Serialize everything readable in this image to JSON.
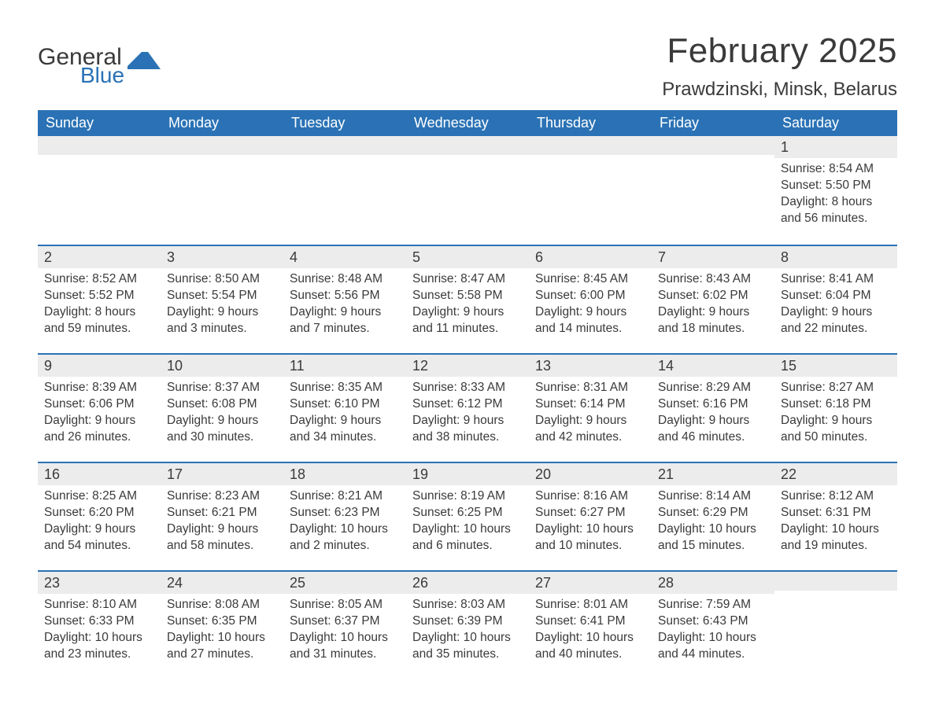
{
  "logo": {
    "part1": "General",
    "part2": "Blue",
    "flag_color": "#2a72b5",
    "text_color": "#3a3a3a"
  },
  "title": "February 2025",
  "location": "Prawdzinski, Minsk, Belarus",
  "colors": {
    "header_bg": "#2a72b5",
    "header_text": "#ffffff",
    "row_divider": "#2a72b5",
    "daynum_bg": "#ececec",
    "body_text": "#3a3a3a",
    "page_bg": "#ffffff"
  },
  "day_names": [
    "Sunday",
    "Monday",
    "Tuesday",
    "Wednesday",
    "Thursday",
    "Friday",
    "Saturday"
  ],
  "weeks": [
    [
      {
        "day": "",
        "sunrise": "",
        "sunset": "",
        "daylight1": "",
        "daylight2": ""
      },
      {
        "day": "",
        "sunrise": "",
        "sunset": "",
        "daylight1": "",
        "daylight2": ""
      },
      {
        "day": "",
        "sunrise": "",
        "sunset": "",
        "daylight1": "",
        "daylight2": ""
      },
      {
        "day": "",
        "sunrise": "",
        "sunset": "",
        "daylight1": "",
        "daylight2": ""
      },
      {
        "day": "",
        "sunrise": "",
        "sunset": "",
        "daylight1": "",
        "daylight2": ""
      },
      {
        "day": "",
        "sunrise": "",
        "sunset": "",
        "daylight1": "",
        "daylight2": ""
      },
      {
        "day": "1",
        "sunrise": "Sunrise: 8:54 AM",
        "sunset": "Sunset: 5:50 PM",
        "daylight1": "Daylight: 8 hours",
        "daylight2": "and 56 minutes."
      }
    ],
    [
      {
        "day": "2",
        "sunrise": "Sunrise: 8:52 AM",
        "sunset": "Sunset: 5:52 PM",
        "daylight1": "Daylight: 8 hours",
        "daylight2": "and 59 minutes."
      },
      {
        "day": "3",
        "sunrise": "Sunrise: 8:50 AM",
        "sunset": "Sunset: 5:54 PM",
        "daylight1": "Daylight: 9 hours",
        "daylight2": "and 3 minutes."
      },
      {
        "day": "4",
        "sunrise": "Sunrise: 8:48 AM",
        "sunset": "Sunset: 5:56 PM",
        "daylight1": "Daylight: 9 hours",
        "daylight2": "and 7 minutes."
      },
      {
        "day": "5",
        "sunrise": "Sunrise: 8:47 AM",
        "sunset": "Sunset: 5:58 PM",
        "daylight1": "Daylight: 9 hours",
        "daylight2": "and 11 minutes."
      },
      {
        "day": "6",
        "sunrise": "Sunrise: 8:45 AM",
        "sunset": "Sunset: 6:00 PM",
        "daylight1": "Daylight: 9 hours",
        "daylight2": "and 14 minutes."
      },
      {
        "day": "7",
        "sunrise": "Sunrise: 8:43 AM",
        "sunset": "Sunset: 6:02 PM",
        "daylight1": "Daylight: 9 hours",
        "daylight2": "and 18 minutes."
      },
      {
        "day": "8",
        "sunrise": "Sunrise: 8:41 AM",
        "sunset": "Sunset: 6:04 PM",
        "daylight1": "Daylight: 9 hours",
        "daylight2": "and 22 minutes."
      }
    ],
    [
      {
        "day": "9",
        "sunrise": "Sunrise: 8:39 AM",
        "sunset": "Sunset: 6:06 PM",
        "daylight1": "Daylight: 9 hours",
        "daylight2": "and 26 minutes."
      },
      {
        "day": "10",
        "sunrise": "Sunrise: 8:37 AM",
        "sunset": "Sunset: 6:08 PM",
        "daylight1": "Daylight: 9 hours",
        "daylight2": "and 30 minutes."
      },
      {
        "day": "11",
        "sunrise": "Sunrise: 8:35 AM",
        "sunset": "Sunset: 6:10 PM",
        "daylight1": "Daylight: 9 hours",
        "daylight2": "and 34 minutes."
      },
      {
        "day": "12",
        "sunrise": "Sunrise: 8:33 AM",
        "sunset": "Sunset: 6:12 PM",
        "daylight1": "Daylight: 9 hours",
        "daylight2": "and 38 minutes."
      },
      {
        "day": "13",
        "sunrise": "Sunrise: 8:31 AM",
        "sunset": "Sunset: 6:14 PM",
        "daylight1": "Daylight: 9 hours",
        "daylight2": "and 42 minutes."
      },
      {
        "day": "14",
        "sunrise": "Sunrise: 8:29 AM",
        "sunset": "Sunset: 6:16 PM",
        "daylight1": "Daylight: 9 hours",
        "daylight2": "and 46 minutes."
      },
      {
        "day": "15",
        "sunrise": "Sunrise: 8:27 AM",
        "sunset": "Sunset: 6:18 PM",
        "daylight1": "Daylight: 9 hours",
        "daylight2": "and 50 minutes."
      }
    ],
    [
      {
        "day": "16",
        "sunrise": "Sunrise: 8:25 AM",
        "sunset": "Sunset: 6:20 PM",
        "daylight1": "Daylight: 9 hours",
        "daylight2": "and 54 minutes."
      },
      {
        "day": "17",
        "sunrise": "Sunrise: 8:23 AM",
        "sunset": "Sunset: 6:21 PM",
        "daylight1": "Daylight: 9 hours",
        "daylight2": "and 58 minutes."
      },
      {
        "day": "18",
        "sunrise": "Sunrise: 8:21 AM",
        "sunset": "Sunset: 6:23 PM",
        "daylight1": "Daylight: 10 hours",
        "daylight2": "and 2 minutes."
      },
      {
        "day": "19",
        "sunrise": "Sunrise: 8:19 AM",
        "sunset": "Sunset: 6:25 PM",
        "daylight1": "Daylight: 10 hours",
        "daylight2": "and 6 minutes."
      },
      {
        "day": "20",
        "sunrise": "Sunrise: 8:16 AM",
        "sunset": "Sunset: 6:27 PM",
        "daylight1": "Daylight: 10 hours",
        "daylight2": "and 10 minutes."
      },
      {
        "day": "21",
        "sunrise": "Sunrise: 8:14 AM",
        "sunset": "Sunset: 6:29 PM",
        "daylight1": "Daylight: 10 hours",
        "daylight2": "and 15 minutes."
      },
      {
        "day": "22",
        "sunrise": "Sunrise: 8:12 AM",
        "sunset": "Sunset: 6:31 PM",
        "daylight1": "Daylight: 10 hours",
        "daylight2": "and 19 minutes."
      }
    ],
    [
      {
        "day": "23",
        "sunrise": "Sunrise: 8:10 AM",
        "sunset": "Sunset: 6:33 PM",
        "daylight1": "Daylight: 10 hours",
        "daylight2": "and 23 minutes."
      },
      {
        "day": "24",
        "sunrise": "Sunrise: 8:08 AM",
        "sunset": "Sunset: 6:35 PM",
        "daylight1": "Daylight: 10 hours",
        "daylight2": "and 27 minutes."
      },
      {
        "day": "25",
        "sunrise": "Sunrise: 8:05 AM",
        "sunset": "Sunset: 6:37 PM",
        "daylight1": "Daylight: 10 hours",
        "daylight2": "and 31 minutes."
      },
      {
        "day": "26",
        "sunrise": "Sunrise: 8:03 AM",
        "sunset": "Sunset: 6:39 PM",
        "daylight1": "Daylight: 10 hours",
        "daylight2": "and 35 minutes."
      },
      {
        "day": "27",
        "sunrise": "Sunrise: 8:01 AM",
        "sunset": "Sunset: 6:41 PM",
        "daylight1": "Daylight: 10 hours",
        "daylight2": "and 40 minutes."
      },
      {
        "day": "28",
        "sunrise": "Sunrise: 7:59 AM",
        "sunset": "Sunset: 6:43 PM",
        "daylight1": "Daylight: 10 hours",
        "daylight2": "and 44 minutes."
      },
      {
        "day": "",
        "sunrise": "",
        "sunset": "",
        "daylight1": "",
        "daylight2": ""
      }
    ]
  ]
}
